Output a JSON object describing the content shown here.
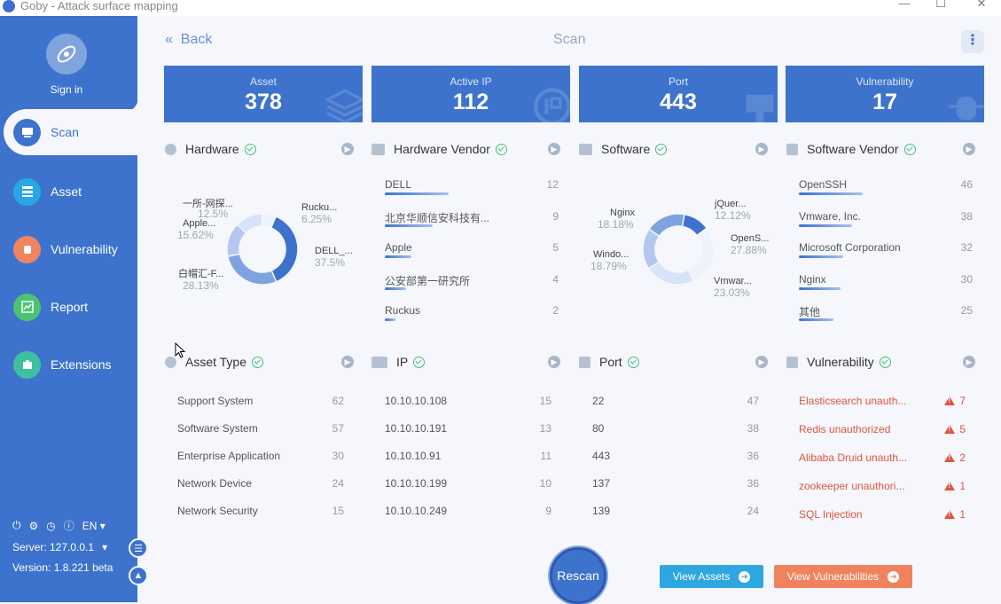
{
  "window": {
    "title": "Goby - Attack surface mapping"
  },
  "sidebar": {
    "signin": "Sign in",
    "items": [
      {
        "label": "Scan"
      },
      {
        "label": "Asset"
      },
      {
        "label": "Vulnerability"
      },
      {
        "label": "Report"
      },
      {
        "label": "Extensions"
      }
    ],
    "language": "EN",
    "server": "Server: 127.0.0.1",
    "version": "Version: 1.8.221 beta"
  },
  "header": {
    "back": "Back",
    "title": "Scan"
  },
  "stats": [
    {
      "label": "Asset",
      "value": "378"
    },
    {
      "label": "Active IP",
      "value": "112"
    },
    {
      "label": "Port",
      "value": "443"
    },
    {
      "label": "Vulnerability",
      "value": "17"
    }
  ],
  "panels": {
    "hardware": {
      "title": "Hardware",
      "slices": [
        {
          "name": "DELL_...",
          "pct": "37.5%",
          "value": 37.5,
          "color": "#3d73cc"
        },
        {
          "name": "白帽汇-F...",
          "pct": "28.13%",
          "value": 28.13,
          "color": "#7fa3df"
        },
        {
          "name": "Apple...",
          "pct": "15.62%",
          "value": 15.62,
          "color": "#b3c8ee"
        },
        {
          "name": "一所-网探...",
          "pct": "12.5%",
          "value": 12.5,
          "color": "#d7e3f6"
        },
        {
          "name": "Rucku...",
          "pct": "6.25%",
          "value": 6.25,
          "color": "#edf2fb"
        }
      ]
    },
    "hardware_vendor": {
      "title": "Hardware Vendor",
      "items": [
        {
          "name": "DELL",
          "count": "12",
          "ratio": 1.0
        },
        {
          "name": "北京华顺信安科技有...",
          "count": "9",
          "ratio": 0.75
        },
        {
          "name": "Apple",
          "count": "5",
          "ratio": 0.42
        },
        {
          "name": "公安部第一研究所",
          "count": "4",
          "ratio": 0.33
        },
        {
          "name": "Ruckus",
          "count": "2",
          "ratio": 0.17
        }
      ]
    },
    "software": {
      "title": "Software",
      "slices": [
        {
          "name": "jQuer...",
          "pct": "12.12%",
          "value": 12.12,
          "color": "#3d73cc"
        },
        {
          "name": "OpenS...",
          "pct": "27.88%",
          "value": 27.88,
          "color": "#edf2fb"
        },
        {
          "name": "Vmwar...",
          "pct": "23.03%",
          "value": 23.03,
          "color": "#d7e3f6"
        },
        {
          "name": "Windo...",
          "pct": "18.79%",
          "value": 18.79,
          "color": "#b3c8ee"
        },
        {
          "name": "Nginx",
          "pct": "18.18%",
          "value": 18.18,
          "color": "#7fa3df"
        }
      ]
    },
    "software_vendor": {
      "title": "Software Vendor",
      "items": [
        {
          "name": "OpenSSH",
          "count": "46",
          "ratio": 1.0
        },
        {
          "name": "Vmware, Inc.",
          "count": "38",
          "ratio": 0.83
        },
        {
          "name": "Microsoft Corporation",
          "count": "32",
          "ratio": 0.7
        },
        {
          "name": "Nginx",
          "count": "30",
          "ratio": 0.65
        },
        {
          "name": "其他",
          "count": "25",
          "ratio": 0.54
        }
      ]
    },
    "asset_type": {
      "title": "Asset Type",
      "items": [
        {
          "name": "Support System",
          "count": "62"
        },
        {
          "name": "Software System",
          "count": "57"
        },
        {
          "name": "Enterprise Application",
          "count": "30"
        },
        {
          "name": "Network Device",
          "count": "24"
        },
        {
          "name": "Network Security",
          "count": "15"
        }
      ]
    },
    "ip": {
      "title": "IP",
      "items": [
        {
          "name": "10.10.10.108",
          "count": "15"
        },
        {
          "name": "10.10.10.191",
          "count": "13"
        },
        {
          "name": "10.10.10.91",
          "count": "11"
        },
        {
          "name": "10.10.10.199",
          "count": "10"
        },
        {
          "name": "10.10.10.249",
          "count": "9"
        }
      ]
    },
    "port": {
      "title": "Port",
      "items": [
        {
          "name": "22",
          "count": "47"
        },
        {
          "name": "80",
          "count": "38"
        },
        {
          "name": "443",
          "count": "36"
        },
        {
          "name": "137",
          "count": "36"
        },
        {
          "name": "139",
          "count": "24"
        }
      ]
    },
    "vulnerability": {
      "title": "Vulnerability",
      "items": [
        {
          "name": "Elasticsearch unauth...",
          "count": "7"
        },
        {
          "name": "Redis unauthorized",
          "count": "5"
        },
        {
          "name": "Alibaba Druid unauth...",
          "count": "2"
        },
        {
          "name": "zookeeper unauthori...",
          "count": "1"
        },
        {
          "name": "SQL Injection",
          "count": "1"
        }
      ]
    }
  },
  "actions": {
    "rescan": "Rescan",
    "view_assets": "View Assets",
    "view_vulns": "View Vulnerabilities"
  },
  "colors": {
    "primary": "#3d73cc",
    "assets_btn": "#2ea6e0",
    "vuln_btn": "#f0825e",
    "danger": "#e0533f"
  }
}
